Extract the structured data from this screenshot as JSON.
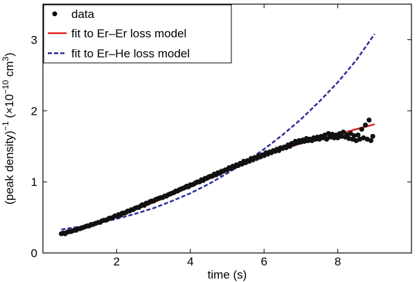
{
  "chart_data": {
    "type": "scatter",
    "xlabel": "time (s)",
    "ylabel_parts": {
      "main": "(peak density)",
      "exp_main": "−1",
      "paren_open": " (×10",
      "exp_unit": "−10",
      "unit": " cm",
      "exp_cm": "3",
      "paren_close": ")"
    },
    "xlim": [
      0,
      10.0
    ],
    "ylim": [
      0,
      3.5
    ],
    "x_ticks": [
      2,
      4,
      6,
      8
    ],
    "y_ticks": [
      0,
      1,
      2,
      3
    ],
    "x_tick_labels": [
      "2",
      "4",
      "6",
      "8"
    ],
    "y_tick_labels": [
      "0",
      "1",
      "2",
      "3"
    ],
    "grid": false,
    "legend_placement": "top-left",
    "legend": [
      {
        "label": "data",
        "style": "marker",
        "color": "#000000"
      },
      {
        "label": "fit to Er–Er loss model",
        "style": "solid",
        "color": "#e02020"
      },
      {
        "label": "fit to Er–He loss model",
        "style": "dashed",
        "color": "#2a2a9c"
      }
    ],
    "series": [
      {
        "kind": "scatter",
        "color": "#111111",
        "points": [
          [
            0.5,
            0.27
          ],
          [
            0.55,
            0.28
          ],
          [
            0.6,
            0.27
          ],
          [
            0.65,
            0.29
          ],
          [
            0.7,
            0.3
          ],
          [
            0.75,
            0.3
          ],
          [
            0.8,
            0.31
          ],
          [
            0.85,
            0.32
          ],
          [
            0.9,
            0.32
          ],
          [
            0.95,
            0.34
          ],
          [
            1.0,
            0.34
          ],
          [
            1.05,
            0.35
          ],
          [
            1.1,
            0.36
          ],
          [
            1.15,
            0.37
          ],
          [
            1.2,
            0.38
          ],
          [
            1.25,
            0.38
          ],
          [
            1.3,
            0.4
          ],
          [
            1.35,
            0.4
          ],
          [
            1.4,
            0.41
          ],
          [
            1.45,
            0.42
          ],
          [
            1.5,
            0.43
          ],
          [
            1.55,
            0.43
          ],
          [
            1.6,
            0.45
          ],
          [
            1.65,
            0.46
          ],
          [
            1.7,
            0.46
          ],
          [
            1.75,
            0.47
          ],
          [
            1.8,
            0.49
          ],
          [
            1.85,
            0.49
          ],
          [
            1.9,
            0.5
          ],
          [
            1.95,
            0.52
          ],
          [
            2.0,
            0.52
          ],
          [
            2.05,
            0.54
          ],
          [
            2.1,
            0.53
          ],
          [
            2.15,
            0.56
          ],
          [
            2.2,
            0.56
          ],
          [
            2.25,
            0.57
          ],
          [
            2.3,
            0.59
          ],
          [
            2.35,
            0.59
          ],
          [
            2.4,
            0.61
          ],
          [
            2.45,
            0.61
          ],
          [
            2.5,
            0.63
          ],
          [
            2.55,
            0.64
          ],
          [
            2.6,
            0.64
          ],
          [
            2.65,
            0.66
          ],
          [
            2.7,
            0.68
          ],
          [
            2.75,
            0.67
          ],
          [
            2.8,
            0.7
          ],
          [
            2.85,
            0.7
          ],
          [
            2.9,
            0.72
          ],
          [
            2.95,
            0.73
          ],
          [
            3.0,
            0.73
          ],
          [
            3.05,
            0.75
          ],
          [
            3.1,
            0.76
          ],
          [
            3.15,
            0.77
          ],
          [
            3.2,
            0.78
          ],
          [
            3.25,
            0.78
          ],
          [
            3.3,
            0.8
          ],
          [
            3.35,
            0.8
          ],
          [
            3.4,
            0.82
          ],
          [
            3.45,
            0.83
          ],
          [
            3.5,
            0.84
          ],
          [
            3.55,
            0.85
          ],
          [
            3.6,
            0.87
          ],
          [
            3.65,
            0.87
          ],
          [
            3.7,
            0.89
          ],
          [
            3.75,
            0.9
          ],
          [
            3.8,
            0.91
          ],
          [
            3.85,
            0.92
          ],
          [
            3.9,
            0.94
          ],
          [
            3.95,
            0.93
          ],
          [
            4.0,
            0.96
          ],
          [
            4.05,
            0.96
          ],
          [
            4.1,
            0.97
          ],
          [
            4.15,
            0.99
          ],
          [
            4.2,
            1.0
          ],
          [
            4.25,
            1.0
          ],
          [
            4.3,
            1.03
          ],
          [
            4.35,
            1.02
          ],
          [
            4.4,
            1.05
          ],
          [
            4.45,
            1.05
          ],
          [
            4.5,
            1.07
          ],
          [
            4.55,
            1.08
          ],
          [
            4.6,
            1.08
          ],
          [
            4.65,
            1.11
          ],
          [
            4.7,
            1.1
          ],
          [
            4.75,
            1.13
          ],
          [
            4.8,
            1.12
          ],
          [
            4.85,
            1.15
          ],
          [
            4.9,
            1.15
          ],
          [
            4.95,
            1.17
          ],
          [
            5.0,
            1.17
          ],
          [
            5.05,
            1.2
          ],
          [
            5.1,
            1.19
          ],
          [
            5.15,
            1.22
          ],
          [
            5.2,
            1.21
          ],
          [
            5.25,
            1.24
          ],
          [
            5.3,
            1.23
          ],
          [
            5.35,
            1.26
          ],
          [
            5.4,
            1.25
          ],
          [
            5.45,
            1.29
          ],
          [
            5.5,
            1.27
          ],
          [
            5.55,
            1.3
          ],
          [
            5.6,
            1.29
          ],
          [
            5.65,
            1.33
          ],
          [
            5.7,
            1.31
          ],
          [
            5.75,
            1.34
          ],
          [
            5.8,
            1.33
          ],
          [
            5.85,
            1.37
          ],
          [
            5.9,
            1.35
          ],
          [
            5.95,
            1.38
          ],
          [
            6.0,
            1.37
          ],
          [
            6.05,
            1.41
          ],
          [
            6.1,
            1.39
          ],
          [
            6.15,
            1.42
          ],
          [
            6.2,
            1.41
          ],
          [
            6.25,
            1.44
          ],
          [
            6.3,
            1.43
          ],
          [
            6.35,
            1.46
          ],
          [
            6.4,
            1.44
          ],
          [
            6.45,
            1.48
          ],
          [
            6.5,
            1.47
          ],
          [
            6.55,
            1.49
          ],
          [
            6.6,
            1.48
          ],
          [
            6.65,
            1.52
          ],
          [
            6.7,
            1.5
          ],
          [
            6.75,
            1.54
          ],
          [
            6.8,
            1.53
          ],
          [
            6.85,
            1.57
          ],
          [
            6.9,
            1.55
          ],
          [
            6.95,
            1.58
          ],
          [
            7.0,
            1.56
          ],
          [
            7.05,
            1.59
          ],
          [
            7.1,
            1.57
          ],
          [
            7.15,
            1.61
          ],
          [
            7.2,
            1.58
          ],
          [
            7.25,
            1.6
          ],
          [
            7.3,
            1.58
          ],
          [
            7.35,
            1.62
          ],
          [
            7.4,
            1.6
          ],
          [
            7.45,
            1.63
          ],
          [
            7.5,
            1.6
          ],
          [
            7.55,
            1.64
          ],
          [
            7.6,
            1.62
          ],
          [
            7.65,
            1.66
          ],
          [
            7.7,
            1.6
          ],
          [
            7.75,
            1.68
          ],
          [
            7.8,
            1.63
          ],
          [
            7.85,
            1.67
          ],
          [
            7.9,
            1.62
          ],
          [
            7.95,
            1.66
          ],
          [
            8.0,
            1.62
          ],
          [
            8.05,
            1.68
          ],
          [
            8.1,
            1.64
          ],
          [
            8.15,
            1.7
          ],
          [
            8.2,
            1.63
          ],
          [
            8.25,
            1.66
          ],
          [
            8.3,
            1.61
          ],
          [
            8.35,
            1.68
          ],
          [
            8.4,
            1.6
          ],
          [
            8.45,
            1.65
          ],
          [
            8.5,
            1.58
          ],
          [
            8.55,
            1.66
          ],
          [
            8.6,
            1.6
          ],
          [
            8.65,
            1.74
          ],
          [
            8.7,
            1.62
          ],
          [
            8.75,
            1.8
          ],
          [
            8.8,
            1.6
          ],
          [
            8.85,
            1.87
          ],
          [
            8.9,
            1.58
          ],
          [
            8.95,
            1.64
          ]
        ]
      }
    ],
    "fit_er_er": {
      "x": [
        0.5,
        1.0,
        1.5,
        2.0,
        2.5,
        3.0,
        3.5,
        4.0,
        4.5,
        5.0,
        5.5,
        6.0,
        6.5,
        7.0,
        7.5,
        8.0,
        8.5,
        9.0
      ],
      "y": [
        0.28,
        0.35,
        0.43,
        0.52,
        0.61,
        0.71,
        0.82,
        0.93,
        1.04,
        1.15,
        1.26,
        1.37,
        1.46,
        1.54,
        1.6,
        1.67,
        1.74,
        1.81
      ],
      "color": "#e02020"
    },
    "fit_er_he": {
      "x": [
        0.5,
        1.0,
        1.5,
        2.0,
        2.5,
        3.0,
        3.5,
        4.0,
        4.5,
        5.0,
        5.5,
        6.0,
        6.5,
        7.0,
        7.5,
        8.0,
        8.5,
        9.0
      ],
      "y": [
        0.33,
        0.37,
        0.42,
        0.48,
        0.55,
        0.63,
        0.73,
        0.84,
        0.97,
        1.12,
        1.28,
        1.46,
        1.66,
        1.88,
        2.13,
        2.4,
        2.71,
        3.08
      ],
      "color": "#2a2a9c"
    }
  }
}
